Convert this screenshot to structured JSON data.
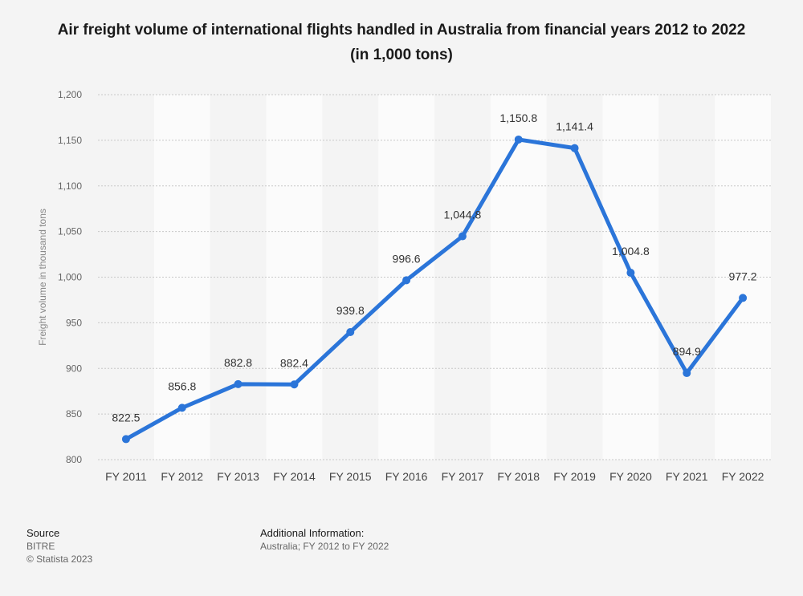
{
  "header": {
    "title": "Air freight volume of international flights handled in Australia from financial years 2012 to 2022 (in 1,000 tons)"
  },
  "chart_data": {
    "type": "line",
    "ylabel": "Freight volume in thousand tons",
    "xlabel": "",
    "ylim": [
      800,
      1200
    ],
    "yticks": [
      800,
      850,
      900,
      950,
      1000,
      1050,
      1100,
      1150,
      1200
    ],
    "ytick_labels": [
      "800",
      "850",
      "900",
      "950",
      "1,000",
      "1,050",
      "1,100",
      "1,150",
      "1,200"
    ],
    "categories": [
      "FY 2011",
      "FY 2012",
      "FY 2013",
      "FY 2014",
      "FY 2015",
      "FY 2016",
      "FY 2017",
      "FY 2018",
      "FY 2019",
      "FY 2020",
      "FY 2021",
      "FY 2022"
    ],
    "series": [
      {
        "values": [
          822.5,
          856.8,
          882.8,
          882.4,
          939.8,
          996.6,
          1044.8,
          1150.8,
          1141.4,
          1004.8,
          894.9,
          977.2
        ],
        "labels": [
          "822.5",
          "856.8",
          "882.8",
          "882.4",
          "939.8",
          "996.6",
          "1,044.8",
          "1,150.8",
          "1,141.4",
          "1,004.8",
          "894.9",
          "977.2"
        ]
      }
    ],
    "grid": true,
    "line_color": "#2b75d9"
  },
  "footer": {
    "source_heading": "Source",
    "source_name": "BITRE",
    "copyright": "© Statista 2023",
    "info_heading": "Additional Information:",
    "info_text": "Australia; FY 2012 to FY 2022"
  }
}
